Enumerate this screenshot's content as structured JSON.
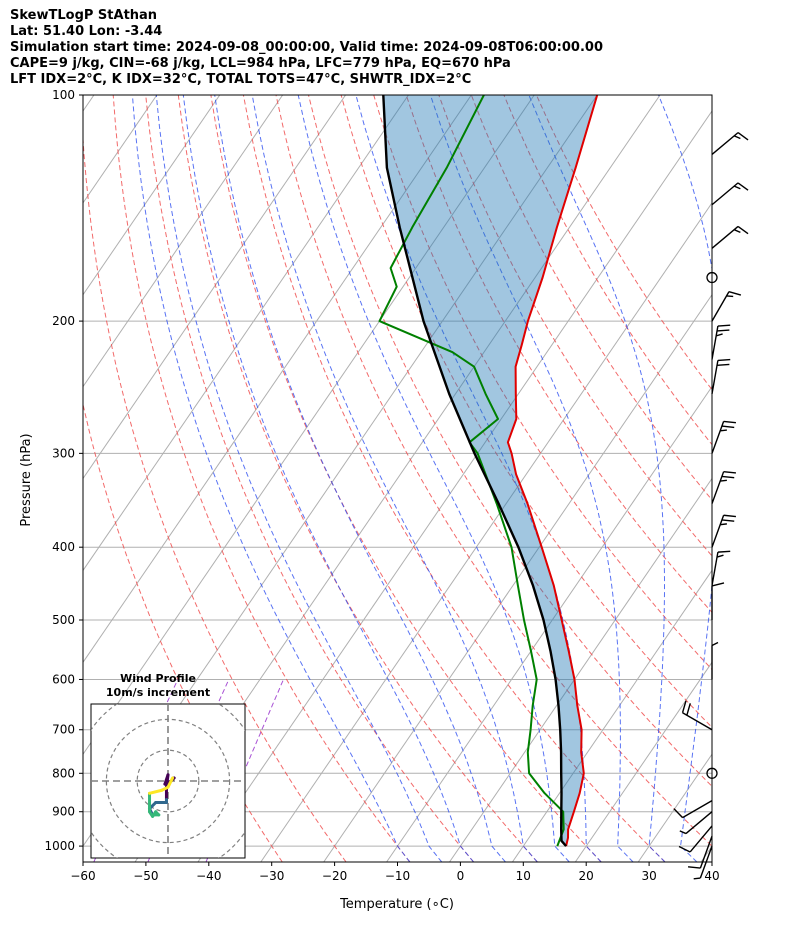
{
  "header": {
    "title": "SkewTLogP StAthan",
    "location": "Lat: 51.40   Lon: -3.44",
    "times": "Simulation start time: 2024-09-08_00:00:00, Valid time: 2024-09-08T06:00:00.00",
    "indices1": "CAPE=9 j/kg, CIN=-68 j/kg, LCL=984 hPa, LFC=779 hPa, EQ=670 hPa",
    "indices2": "LFT IDX=2°C, K IDX=32°C, TOTAL TOTS=47°C, SHWTR_IDX=2°C"
  },
  "chart_data": {
    "type": "skewt-logp",
    "xlabel": "Temperature (∘C)",
    "ylabel": "Pressure (hPa)",
    "xlim": [
      -60,
      40
    ],
    "ylim": [
      1050,
      100
    ],
    "x_ticks": [
      -60,
      -50,
      -40,
      -30,
      -20,
      -10,
      0,
      10,
      20,
      30,
      40
    ],
    "x_tick_labels": [
      "−60",
      "−50",
      "−40",
      "−30",
      "−20",
      "−10",
      "0",
      "10",
      "20",
      "30",
      "40"
    ],
    "y_ticks": [
      1000,
      900,
      800,
      700,
      600,
      500,
      400,
      300,
      200,
      100
    ],
    "y_tick_labels": [
      "1000",
      "900",
      "800",
      "700",
      "600",
      "500",
      "400",
      "300",
      "200",
      "100"
    ],
    "colors": {
      "temperature": "#e00000",
      "dewpoint": "#008000",
      "parcel": "#000000",
      "cape_fill": "#1f77b4",
      "dry_adiabat": "#f05050",
      "moist_adiabat": "#3050f0",
      "mixing_ratio": "#9933cc",
      "isotherm": "#b0b0b0",
      "isobar": "#b0b0b0"
    },
    "series": [
      {
        "name": "Temperature",
        "points": [
          {
            "p": 1000,
            "t": 16.8
          },
          {
            "p": 975,
            "t": 16.2
          },
          {
            "p": 950,
            "t": 15.3
          },
          {
            "p": 900,
            "t": 14.3
          },
          {
            "p": 850,
            "t": 13.2
          },
          {
            "p": 800,
            "t": 11.7
          },
          {
            "p": 750,
            "t": 9.0
          },
          {
            "p": 700,
            "t": 6.6
          },
          {
            "p": 650,
            "t": 3.3
          },
          {
            "p": 600,
            "t": 0.0
          },
          {
            "p": 550,
            "t": -4.0
          },
          {
            "p": 500,
            "t": -8.5
          },
          {
            "p": 450,
            "t": -13.5
          },
          {
            "p": 400,
            "t": -19.6
          },
          {
            "p": 350,
            "t": -26.6
          },
          {
            "p": 320,
            "t": -31.6
          },
          {
            "p": 300,
            "t": -34.6
          },
          {
            "p": 290,
            "t": -36.4
          },
          {
            "p": 270,
            "t": -37.6
          },
          {
            "p": 250,
            "t": -40.4
          },
          {
            "p": 230,
            "t": -43.4
          },
          {
            "p": 215,
            "t": -44.8
          },
          {
            "p": 200,
            "t": -46.4
          },
          {
            "p": 175,
            "t": -48.8
          },
          {
            "p": 150,
            "t": -52.0
          },
          {
            "p": 125,
            "t": -55.5
          },
          {
            "p": 100,
            "t": -60.0
          }
        ]
      },
      {
        "name": "Dewpoint",
        "points": [
          {
            "p": 1000,
            "t": 15.4
          },
          {
            "p": 950,
            "t": 14.6
          },
          {
            "p": 900,
            "t": 12.6
          },
          {
            "p": 850,
            "t": 7.6
          },
          {
            "p": 800,
            "t": 3.0
          },
          {
            "p": 750,
            "t": 0.5
          },
          {
            "p": 700,
            "t": -1.5
          },
          {
            "p": 650,
            "t": -3.8
          },
          {
            "p": 600,
            "t": -6.0
          },
          {
            "p": 550,
            "t": -10.0
          },
          {
            "p": 500,
            "t": -14.5
          },
          {
            "p": 450,
            "t": -19.2
          },
          {
            "p": 400,
            "t": -24.4
          },
          {
            "p": 350,
            "t": -31.5
          },
          {
            "p": 300,
            "t": -40.0
          },
          {
            "p": 290,
            "t": -42.5
          },
          {
            "p": 270,
            "t": -40.5
          },
          {
            "p": 250,
            "t": -45.2
          },
          {
            "p": 230,
            "t": -50.0
          },
          {
            "p": 220,
            "t": -55.0
          },
          {
            "p": 200,
            "t": -70.0
          },
          {
            "p": 180,
            "t": -71.0
          },
          {
            "p": 170,
            "t": -74.0
          },
          {
            "p": 150,
            "t": -75.0
          },
          {
            "p": 125,
            "t": -76.0
          },
          {
            "p": 100,
            "t": -78.0
          }
        ]
      },
      {
        "name": "Parcel",
        "points": [
          {
            "p": 1000,
            "t": 16.8
          },
          {
            "p": 984,
            "t": 15.5
          },
          {
            "p": 950,
            "t": 14.2
          },
          {
            "p": 900,
            "t": 12.3
          },
          {
            "p": 850,
            "t": 10.3
          },
          {
            "p": 800,
            "t": 8.1
          },
          {
            "p": 750,
            "t": 5.8
          },
          {
            "p": 700,
            "t": 3.2
          },
          {
            "p": 650,
            "t": 0.3
          },
          {
            "p": 600,
            "t": -3.0
          },
          {
            "p": 550,
            "t": -6.9
          },
          {
            "p": 500,
            "t": -11.4
          },
          {
            "p": 450,
            "t": -16.8
          },
          {
            "p": 400,
            "t": -23.3
          },
          {
            "p": 350,
            "t": -31.2
          },
          {
            "p": 300,
            "t": -40.5
          },
          {
            "p": 250,
            "t": -51.0
          },
          {
            "p": 200,
            "t": -63.0
          },
          {
            "p": 150,
            "t": -77.0
          },
          {
            "p": 125,
            "t": -85.5
          },
          {
            "p": 100,
            "t": -94.0
          }
        ]
      }
    ],
    "wind_barbs": [
      {
        "p": 1000,
        "speed_kt": 5,
        "direction_deg": 200
      },
      {
        "p": 970,
        "speed_kt": 10,
        "direction_deg": 200
      },
      {
        "p": 940,
        "speed_kt": 10,
        "direction_deg": 220
      },
      {
        "p": 900,
        "speed_kt": 5,
        "direction_deg": 230
      },
      {
        "p": 870,
        "speed_kt": 10,
        "direction_deg": 240
      },
      {
        "p": 800,
        "speed_kt": 0,
        "direction_deg": 0
      },
      {
        "p": 700,
        "speed_kt": 20,
        "direction_deg": 300
      },
      {
        "p": 600,
        "speed_kt": 5,
        "direction_deg": 0
      },
      {
        "p": 500,
        "speed_kt": 10,
        "direction_deg": 0
      },
      {
        "p": 450,
        "speed_kt": 15,
        "direction_deg": 10
      },
      {
        "p": 400,
        "speed_kt": 25,
        "direction_deg": 20
      },
      {
        "p": 350,
        "speed_kt": 25,
        "direction_deg": 20
      },
      {
        "p": 300,
        "speed_kt": 25,
        "direction_deg": 20
      },
      {
        "p": 250,
        "speed_kt": 20,
        "direction_deg": 10
      },
      {
        "p": 225,
        "speed_kt": 25,
        "direction_deg": 10
      },
      {
        "p": 200,
        "speed_kt": 15,
        "direction_deg": 30
      },
      {
        "p": 175,
        "speed_kt": 0,
        "direction_deg": 0
      },
      {
        "p": 160,
        "speed_kt": 15,
        "direction_deg": 50
      },
      {
        "p": 140,
        "speed_kt": 15,
        "direction_deg": 50
      },
      {
        "p": 120,
        "speed_kt": 15,
        "direction_deg": 50
      }
    ],
    "hodograph": {
      "title": "Wind Profile",
      "subtitle": "10m/s increment",
      "range_ms": 25,
      "rings_ms": [
        10,
        20,
        30
      ],
      "colormap": [
        "#440154",
        "#31688e",
        "#35b779",
        "#fde725"
      ],
      "points": [
        {
          "u": 2,
          "v": 1
        },
        {
          "u": 1,
          "v": 0
        },
        {
          "u": -1,
          "v": -1
        },
        {
          "u": 0,
          "v": 2
        },
        {
          "u": -0.5,
          "v": -2
        },
        {
          "u": -0.5,
          "v": -6
        },
        {
          "u": -0.5,
          "v": -7
        },
        {
          "u": -4,
          "v": -7
        },
        {
          "u": -6,
          "v": -9
        },
        {
          "u": -5,
          "v": -11
        },
        {
          "u": -3,
          "v": -11
        },
        {
          "u": -4,
          "v": -10
        },
        {
          "u": -5,
          "v": -11.5
        },
        {
          "u": -6,
          "v": -10
        },
        {
          "u": -6,
          "v": -4
        },
        {
          "u": -2,
          "v": -3
        },
        {
          "u": 0,
          "v": -2
        },
        {
          "u": 1,
          "v": 0
        },
        {
          "u": 1.5,
          "v": 1
        }
      ]
    }
  }
}
